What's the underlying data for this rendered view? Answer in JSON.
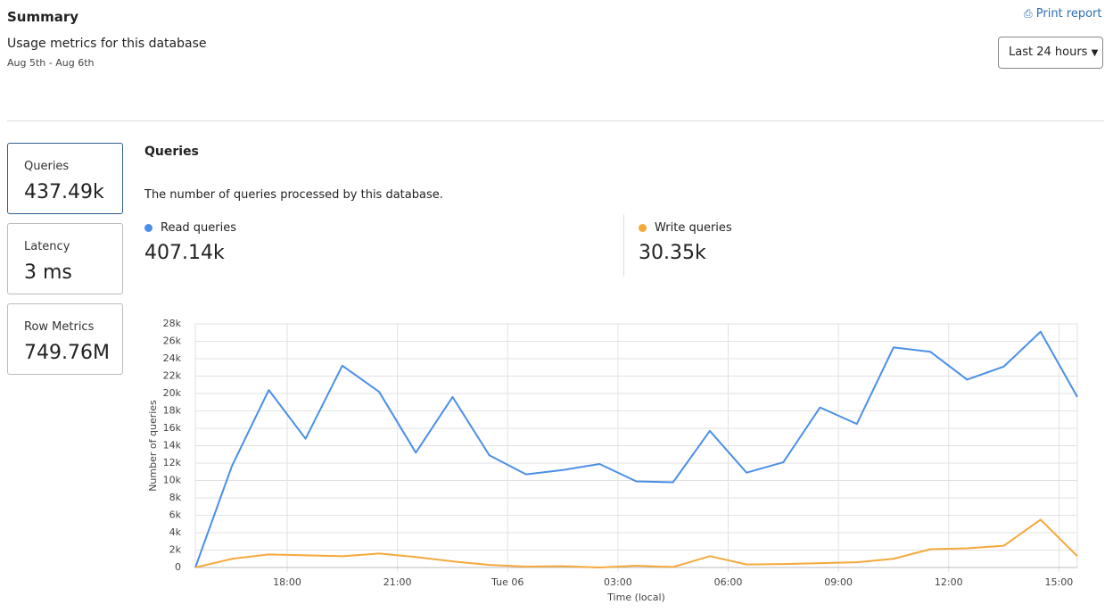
{
  "header": {
    "title": "Summary",
    "subtitle": "Usage metrics for this database",
    "date_range": "Aug 5th - Aug 6th",
    "print": "Print report",
    "period": "Last 24 hours"
  },
  "cards": [
    {
      "label": "Queries",
      "value": "437.49k"
    },
    {
      "label": "Latency",
      "value": "3 ms"
    },
    {
      "label": "Row Metrics",
      "value": "749.76M"
    }
  ],
  "panel": {
    "title": "Queries",
    "description": "The number of queries processed by this database."
  },
  "chart_data": {
    "type": "line",
    "ylabel": "Number of queries",
    "xlabel": "Time (local)",
    "x": [
      15.5,
      16.5,
      17.5,
      18.5,
      19.5,
      20.5,
      21.5,
      22.5,
      23.5,
      24.5,
      25.5,
      26.5,
      27.5,
      28.5,
      29.5,
      30.5,
      31.5,
      32.5,
      33.5,
      34.5,
      35.5,
      36.5,
      37.5,
      38.5,
      39.5
    ],
    "xlim": [
      15.5,
      39.5
    ],
    "xticks": [
      {
        "value": 18,
        "label": "18:00"
      },
      {
        "value": 21,
        "label": "21:00"
      },
      {
        "value": 24,
        "label": "Tue 06"
      },
      {
        "value": 27,
        "label": "03:00"
      },
      {
        "value": 30,
        "label": "06:00"
      },
      {
        "value": 33,
        "label": "09:00"
      },
      {
        "value": 36,
        "label": "12:00"
      },
      {
        "value": 39,
        "label": "15:00"
      }
    ],
    "ylim": [
      0,
      28000
    ],
    "yticks": [
      0,
      {
        "value": 2000,
        "label": "2k"
      },
      {
        "value": 4000,
        "label": "4k"
      },
      {
        "value": 6000,
        "label": "6k"
      },
      {
        "value": 8000,
        "label": "8k"
      },
      {
        "value": 10000,
        "label": "10k"
      },
      {
        "value": 12000,
        "label": "12k"
      },
      {
        "value": 14000,
        "label": "14k"
      },
      {
        "value": 16000,
        "label": "16k"
      },
      {
        "value": 18000,
        "label": "18k"
      },
      {
        "value": 20000,
        "label": "20k"
      },
      {
        "value": 22000,
        "label": "22k"
      },
      {
        "value": 24000,
        "label": "24k"
      },
      {
        "value": 26000,
        "label": "26k"
      },
      {
        "value": 28000,
        "label": "28k"
      }
    ],
    "grid": true,
    "series": [
      {
        "name": "Read queries",
        "summary": "407.14k",
        "color": "#4a8fe7",
        "values": [
          0,
          11700,
          20400,
          14800,
          23200,
          20200,
          13200,
          19600,
          12900,
          10700,
          11200,
          11900,
          9900,
          9800,
          15700,
          10900,
          12100,
          18400,
          16500,
          25300,
          24800,
          21600,
          23100,
          27100,
          19600
        ]
      },
      {
        "name": "Write queries",
        "summary": "30.35k",
        "color": "#f5a93b",
        "values": [
          0,
          1000,
          1500,
          1400,
          1300,
          1600,
          1200,
          700,
          300,
          100,
          150,
          0,
          200,
          50,
          1300,
          350,
          400,
          500,
          600,
          1000,
          2100,
          2200,
          2500,
          5500,
          1300
        ]
      }
    ]
  }
}
